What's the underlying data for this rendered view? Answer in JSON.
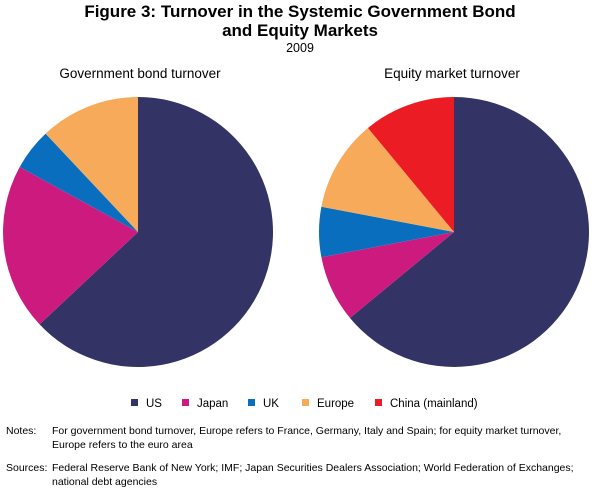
{
  "title_line1": "Figure 3: Turnover in the Systemic Government Bond",
  "title_line2": "and Equity Markets",
  "subtitle": "2009",
  "colors": {
    "US": "#333366",
    "Japan": "#cc1a7f",
    "UK": "#0a6ebf",
    "Europe": "#f7aa5a",
    "China (mainland)": "#ec1c24"
  },
  "chart_data": [
    {
      "type": "pie",
      "title": "Government bond turnover",
      "categories": [
        "US",
        "Japan",
        "UK",
        "Europe"
      ],
      "values": [
        63,
        20,
        5,
        12
      ]
    },
    {
      "type": "pie",
      "title": "Equity market turnover",
      "categories": [
        "US",
        "Japan",
        "UK",
        "Europe",
        "China (mainland)"
      ],
      "values": [
        64,
        8,
        6,
        11,
        11
      ]
    }
  ],
  "legend": [
    "US",
    "Japan",
    "UK",
    "Europe",
    "China (mainland)"
  ],
  "notes_label": "Notes:",
  "notes_text": "For government bond turnover, Europe refers to France, Germany, Italy and Spain; for equity market turnover, Europe refers to the euro area",
  "sources_label": "Sources:",
  "sources_text": "Federal Reserve Bank of New York; IMF; Japan Securities Dealers Association; World Federation of Exchanges; national debt agencies"
}
